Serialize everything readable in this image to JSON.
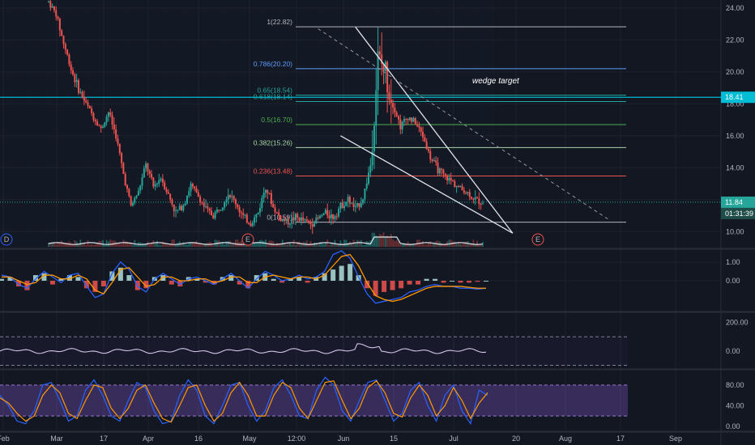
{
  "colors": {
    "background": "#131722",
    "grid": "#1e2230",
    "up": "#26a69a",
    "down": "#ef5350",
    "axis_text": "#b2b5be",
    "wedge": "#e0e3eb",
    "resistance": "#00bcd4",
    "current": "#26a69a",
    "macd_line": "#2962ff",
    "signal_line": "#ff9800",
    "stoch_k": "#2962ff",
    "stoch_d": "#ff9800",
    "stoch_band": "#7e57c2",
    "rsi_line": "#b39ddb"
  },
  "annotations": {
    "wedge_target": "wedge target"
  },
  "price_tags": {
    "resistance_value": "18.41",
    "current_value": "11.84",
    "countdown": "01:31:39"
  },
  "event_markers": [
    {
      "label": "D",
      "color": "#2962ff"
    },
    {
      "label": "E",
      "color": "#ef5350"
    },
    {
      "label": "E",
      "color": "#ef5350"
    }
  ],
  "chart_data": [
    {
      "type": "candlestick",
      "x_tick_labels": [
        "Feb",
        "Mar",
        "17",
        "Apr",
        "16",
        "May",
        "12:00",
        "Jun",
        "15",
        "Jul",
        "20",
        "Aug",
        "17",
        "Sep"
      ],
      "y_tick_labels": [
        "24.00",
        "22.00",
        "20.00",
        "18.00",
        "16.00",
        "14.00",
        "12.00",
        "10.00"
      ],
      "ylim": [
        9.0,
        24.5
      ],
      "fib_levels": [
        {
          "label": "1(22.82)",
          "value": 22.82,
          "color": "#b2b5be"
        },
        {
          "label": "0.786(20.20)",
          "value": 20.2,
          "color": "#5b9cf6"
        },
        {
          "label": "0.65(18.54)",
          "value": 18.54,
          "color": "#26a69a"
        },
        {
          "label": "0.618(18.14)",
          "value": 18.14,
          "color": "#26a69a"
        },
        {
          "label": "0.5(16.70)",
          "value": 16.7,
          "color": "#4caf50"
        },
        {
          "label": "0.382(15.26)",
          "value": 15.26,
          "color": "#a5d6a7"
        },
        {
          "label": "0.236(13.48)",
          "value": 13.48,
          "color": "#ef5350"
        },
        {
          "label": "0(10.59)",
          "value": 10.59,
          "color": "#b2b5be"
        }
      ],
      "resistance_level": 18.41,
      "current_price": 11.84,
      "price_series": [
        {
          "t": 0,
          "v": 24.4
        },
        {
          "t": 2,
          "v": 23.6
        },
        {
          "t": 4,
          "v": 21.8
        },
        {
          "t": 6,
          "v": 20.2
        },
        {
          "t": 8,
          "v": 18.9
        },
        {
          "t": 10,
          "v": 18.0
        },
        {
          "t": 12,
          "v": 17.2
        },
        {
          "t": 14,
          "v": 16.4
        },
        {
          "t": 16,
          "v": 17.5
        },
        {
          "t": 18,
          "v": 16.0
        },
        {
          "t": 20,
          "v": 13.6
        },
        {
          "t": 22,
          "v": 11.6
        },
        {
          "t": 24,
          "v": 12.5
        },
        {
          "t": 26,
          "v": 14.2
        },
        {
          "t": 28,
          "v": 12.8
        },
        {
          "t": 30,
          "v": 13.4
        },
        {
          "t": 32,
          "v": 12.3
        },
        {
          "t": 34,
          "v": 11.2
        },
        {
          "t": 36,
          "v": 11.7
        },
        {
          "t": 38,
          "v": 12.9
        },
        {
          "t": 40,
          "v": 12.2
        },
        {
          "t": 42,
          "v": 11.4
        },
        {
          "t": 44,
          "v": 11.0
        },
        {
          "t": 46,
          "v": 11.6
        },
        {
          "t": 48,
          "v": 12.4
        },
        {
          "t": 50,
          "v": 11.8
        },
        {
          "t": 52,
          "v": 10.9
        },
        {
          "t": 54,
          "v": 10.5
        },
        {
          "t": 56,
          "v": 11.2
        },
        {
          "t": 58,
          "v": 12.9
        },
        {
          "t": 60,
          "v": 11.5
        },
        {
          "t": 62,
          "v": 10.8
        },
        {
          "t": 64,
          "v": 10.6
        },
        {
          "t": 66,
          "v": 10.9
        },
        {
          "t": 68,
          "v": 10.7
        },
        {
          "t": 70,
          "v": 10.5
        },
        {
          "t": 72,
          "v": 10.8
        },
        {
          "t": 74,
          "v": 11.2
        },
        {
          "t": 76,
          "v": 10.9
        },
        {
          "t": 78,
          "v": 11.6
        },
        {
          "t": 80,
          "v": 12.0
        },
        {
          "t": 82,
          "v": 11.4
        },
        {
          "t": 84,
          "v": 12.1
        },
        {
          "t": 86,
          "v": 14.2
        },
        {
          "t": 88,
          "v": 20.8
        },
        {
          "t": 90,
          "v": 20.0
        },
        {
          "t": 92,
          "v": 18.0
        },
        {
          "t": 94,
          "v": 16.6
        },
        {
          "t": 96,
          "v": 17.2
        },
        {
          "t": 98,
          "v": 16.8
        },
        {
          "t": 100,
          "v": 16.0
        },
        {
          "t": 102,
          "v": 14.6
        },
        {
          "t": 104,
          "v": 13.9
        },
        {
          "t": 106,
          "v": 13.4
        },
        {
          "t": 108,
          "v": 13.1
        },
        {
          "t": 110,
          "v": 12.7
        },
        {
          "t": 112,
          "v": 12.4
        },
        {
          "t": 114,
          "v": 12.0
        },
        {
          "t": 116,
          "v": 11.84
        }
      ],
      "wedge_upper": [
        {
          "t": 82,
          "v": 22.8
        },
        {
          "t": 124,
          "v": 9.9
        }
      ],
      "wedge_lower": [
        {
          "t": 78,
          "v": 16.0
        },
        {
          "t": 124,
          "v": 9.9
        }
      ],
      "target_line": [
        {
          "t": 72,
          "v": 22.7
        },
        {
          "t": 150,
          "v": 10.7
        }
      ]
    },
    {
      "type": "macd",
      "y_tick_labels": [
        "1.00",
        "0.00"
      ],
      "ylim": [
        -1.6,
        1.6
      ],
      "histogram": [
        0.1,
        0.2,
        -0.3,
        -0.5,
        0.3,
        0.4,
        -0.2,
        0.1,
        0.3,
        0.2,
        -0.4,
        -0.6,
        -0.3,
        0.5,
        0.7,
        0.3,
        -0.5,
        -0.4,
        0.2,
        0.3,
        -0.2,
        -0.3,
        0.2,
        0.1,
        -0.1,
        -0.2,
        0.2,
        0.3,
        -0.2,
        -0.4,
        0.3,
        0.4,
        0.1,
        -0.1,
        0.1,
        0.2,
        -0.1,
        0.2,
        0.4,
        0.6,
        0.8,
        0.9,
        0.3,
        -0.4,
        -0.8,
        -0.6,
        -0.5,
        -0.4,
        -0.2,
        -0.2,
        0.1,
        0.1,
        -0.1,
        0.0,
        -0.1,
        -0.1,
        -0.05,
        0.0
      ],
      "macd_line": [
        0.3,
        0.2,
        -0.2,
        -0.4,
        0.1,
        0.5,
        0.2,
        -0.1,
        0.3,
        0.4,
        -0.3,
        -0.9,
        -0.7,
        0.4,
        1.0,
        0.6,
        -0.3,
        -0.6,
        0.1,
        0.4,
        0.1,
        -0.2,
        0.1,
        0.2,
        0.0,
        -0.2,
        0.1,
        0.4,
        0.0,
        -0.4,
        0.1,
        0.5,
        0.3,
        0.0,
        0.1,
        0.3,
        0.1,
        0.2,
        0.5,
        1.4,
        1.6,
        1.2,
        0.2,
        -0.7,
        -1.2,
        -1.1,
        -1.0,
        -0.9,
        -0.6,
        -0.5,
        -0.3,
        -0.2,
        -0.3,
        -0.3,
        -0.4,
        -0.4,
        -0.45,
        -0.4
      ],
      "signal_line": [
        0.2,
        0.2,
        0.0,
        -0.2,
        -0.1,
        0.3,
        0.3,
        0.1,
        0.1,
        0.3,
        0.1,
        -0.5,
        -0.7,
        -0.1,
        0.6,
        0.7,
        0.2,
        -0.3,
        -0.2,
        0.2,
        0.2,
        0.0,
        0.0,
        0.1,
        0.1,
        -0.1,
        0.0,
        0.2,
        0.2,
        -0.1,
        -0.1,
        0.2,
        0.3,
        0.2,
        0.1,
        0.2,
        0.2,
        0.1,
        0.3,
        0.8,
        1.3,
        1.4,
        0.8,
        -0.1,
        -0.8,
        -1.0,
        -1.1,
        -1.0,
        -0.8,
        -0.6,
        -0.4,
        -0.3,
        -0.3,
        -0.3,
        -0.3,
        -0.35,
        -0.4,
        -0.4
      ]
    },
    {
      "type": "line",
      "y_tick_labels": [
        "200.00",
        "0.00"
      ],
      "ylim": [
        -120,
        260
      ],
      "upper_band": 100,
      "lower_band": -100
    },
    {
      "type": "stochastic",
      "y_tick_labels": [
        "80.00",
        "40.00",
        "0.00"
      ],
      "ylim": [
        -8,
        108
      ],
      "upper_band": 80,
      "lower_band": 20,
      "k_line": [
        60,
        40,
        10,
        5,
        30,
        80,
        85,
        50,
        10,
        20,
        70,
        90,
        60,
        20,
        10,
        50,
        85,
        75,
        30,
        5,
        10,
        60,
        90,
        70,
        20,
        5,
        40,
        80,
        85,
        40,
        10,
        30,
        75,
        90,
        60,
        20,
        15,
        70,
        95,
        80,
        30,
        10,
        50,
        85,
        90,
        50,
        10,
        25,
        70,
        85,
        40,
        10,
        60,
        80,
        30,
        5,
        70,
        60
      ],
      "d_line": [
        55,
        45,
        25,
        10,
        20,
        60,
        80,
        65,
        25,
        15,
        50,
        80,
        75,
        35,
        15,
        35,
        70,
        80,
        45,
        15,
        8,
        40,
        75,
        80,
        40,
        10,
        25,
        65,
        85,
        60,
        20,
        20,
        60,
        85,
        75,
        35,
        15,
        50,
        85,
        88,
        50,
        15,
        35,
        75,
        88,
        65,
        25,
        18,
        55,
        80,
        60,
        20,
        40,
        75,
        50,
        15,
        45,
        65
      ]
    }
  ]
}
